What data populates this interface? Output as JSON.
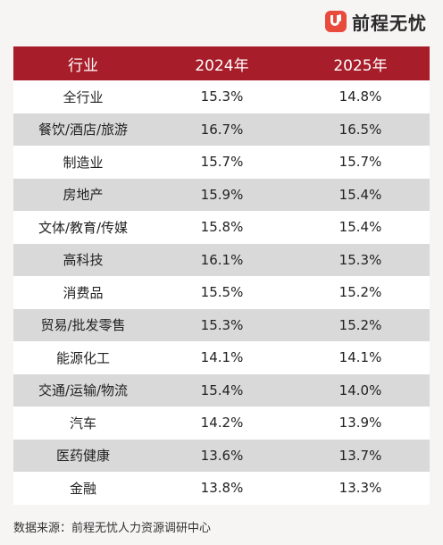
{
  "brand": {
    "name": "前程无忧",
    "accent_color": "#e84a3b"
  },
  "chart_data": {
    "type": "table",
    "header_color": "#a71d2a",
    "columns": [
      "行业",
      "2024年",
      "2025年"
    ],
    "rows": [
      [
        "全行业",
        "15.3%",
        "14.8%"
      ],
      [
        "餐饮/酒店/旅游",
        "16.7%",
        "16.5%"
      ],
      [
        "制造业",
        "15.7%",
        "15.7%"
      ],
      [
        "房地产",
        "15.9%",
        "15.4%"
      ],
      [
        "文体/教育/传媒",
        "15.8%",
        "15.4%"
      ],
      [
        "高科技",
        "16.1%",
        "15.3%"
      ],
      [
        "消费品",
        "15.5%",
        "15.2%"
      ],
      [
        "贸易/批发零售",
        "15.3%",
        "15.2%"
      ],
      [
        "能源化工",
        "14.1%",
        "14.1%"
      ],
      [
        "交通/运输/物流",
        "15.4%",
        "14.0%"
      ],
      [
        "汽车",
        "14.2%",
        "13.9%"
      ],
      [
        "医药健康",
        "13.6%",
        "13.7%"
      ],
      [
        "金融",
        "13.8%",
        "13.3%"
      ]
    ],
    "source": "数据来源：前程无忧人力资源调研中心"
  }
}
